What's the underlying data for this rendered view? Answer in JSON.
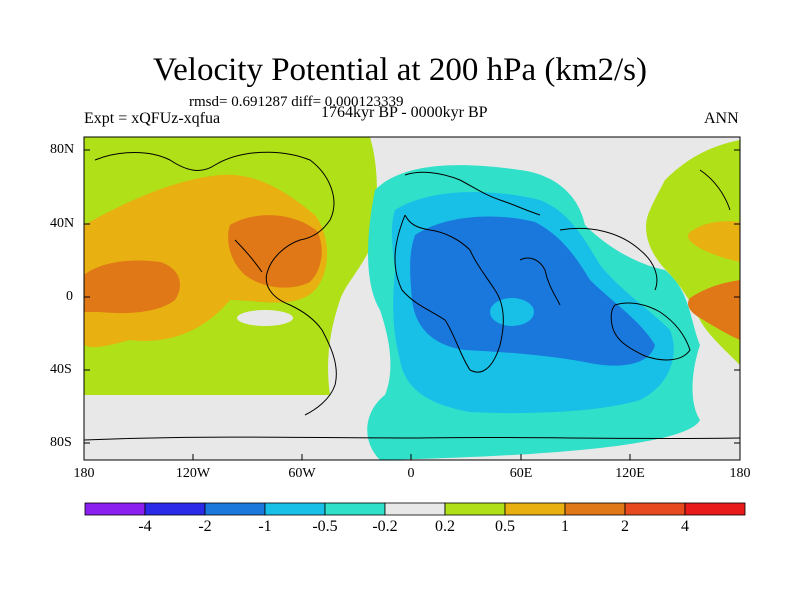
{
  "title": "Velocity Potential at 200 hPa (km2/s)",
  "stats": "rmsd= 0.691287  diff= 0.000123339",
  "experiment": "Expt = xQFUz-xqfua",
  "period": "1764kyr BP - 0000kyr BP",
  "season": "ANN",
  "lat_labels": [
    "80N",
    "40N",
    "0",
    "40S",
    "80S"
  ],
  "lon_labels": [
    "180",
    "120W",
    "60W",
    "0",
    "60E",
    "120E",
    "180"
  ],
  "colorbar": {
    "labels": [
      "-4",
      "-2",
      "-1",
      "-0.5",
      "-0.2",
      "0.2",
      "0.5",
      "1",
      "2",
      "4"
    ],
    "colors": [
      "#8a1ff0",
      "#2a2ae8",
      "#1a78dc",
      "#18c0e8",
      "#30e0c8",
      "#e8e8e8",
      "#b0e018",
      "#e8b010",
      "#e07818",
      "#e84a20",
      "#e81a1a"
    ]
  },
  "colors": {
    "green": "#b0e018",
    "yellow": "#e8b010",
    "orange": "#e07818",
    "gray": "#e8e8e8",
    "teal": "#30e0c8",
    "cyan": "#18c0e8",
    "blue": "#1a78dc"
  }
}
